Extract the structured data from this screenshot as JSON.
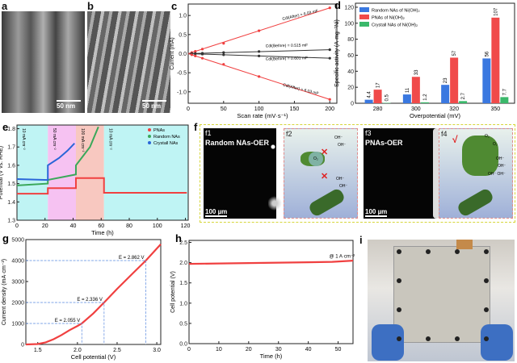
{
  "panels": {
    "a": {
      "label": "a",
      "scale_bar": "50 nm"
    },
    "b": {
      "label": "b",
      "scale_bar": "50 nm"
    },
    "f": {
      "label": "f",
      "f1": {
        "label": "f1",
        "title": "Random NAs-OER",
        "scale_bar": "100 µm"
      },
      "f2": {
        "label": "f2",
        "species": [
          "OH⁻",
          "OH⁻",
          "O₂",
          "OH⁻",
          "OH⁻"
        ],
        "mark": "✕"
      },
      "f3": {
        "label": "f3",
        "title": "PNAs-OER",
        "scale_bar": "100 µm"
      },
      "f4": {
        "label": "f4",
        "species": [
          "O₂",
          "O₂",
          "OH⁻",
          "OH⁻",
          "OH⁻ OH⁻"
        ],
        "mark": "√"
      }
    },
    "i": {
      "label": "i"
    }
  },
  "colors": {
    "red": "#f04040",
    "green": "#3aa85a",
    "blue": "#2a66d8",
    "black": "#333333"
  },
  "chart_data": [
    {
      "id": "c",
      "panel_label": "c",
      "type": "scatter",
      "xlabel": "Scan rate (mV·s⁻¹)",
      "ylabel": "Current (mA)",
      "xlim": [
        0,
        210
      ],
      "ylim": [
        -1.3,
        1.3
      ],
      "xticks": [
        0,
        50,
        100,
        150,
        200
      ],
      "yticks": [
        -1.0,
        -0.5,
        0.0,
        0.5,
        1.0
      ],
      "x": [
        5,
        10,
        20,
        50,
        100,
        200
      ],
      "series": [
        {
          "values": [
            0.03,
            0.06,
            0.12,
            0.27,
            0.6,
            1.2
          ],
          "color": "#f04040",
          "annotation": "Cdl(After) = 6.03 mF"
        },
        {
          "values": [
            0.003,
            0.005,
            0.01,
            0.03,
            0.055,
            0.103
          ],
          "color": "#333333",
          "annotation": "Cdl(Before) = 0.515 mF"
        },
        {
          "values": [
            -0.003,
            -0.006,
            -0.012,
            -0.03,
            -0.06,
            -0.12
          ],
          "color": "#333333",
          "annotation": "Cdl(Before) = 0.601 mF"
        },
        {
          "values": [
            -0.03,
            -0.06,
            -0.12,
            -0.28,
            -0.6,
            -1.2
          ],
          "color": "#f04040",
          "annotation": "Cdl(After) = 6.03 mF"
        }
      ]
    },
    {
      "id": "d",
      "panel_label": "d",
      "type": "bar",
      "xlabel": "Overpotential (mV)",
      "ylabel": "Specific activity (A·mg⁻¹Ni)",
      "categories": [
        "280",
        "300",
        "320",
        "350"
      ],
      "ylim": [
        0,
        125
      ],
      "yticks": [
        0,
        20,
        40,
        60,
        80,
        100,
        120
      ],
      "legend": "top-left",
      "series": [
        {
          "name": "Random NAs of Ni(OH)₂",
          "values": [
            4.4,
            11,
            23,
            56
          ],
          "labels": [
            "4.4",
            "11",
            "23",
            "56"
          ],
          "color": "#3a78e0"
        },
        {
          "name": "PNAs of Ni(OH)₂",
          "values": [
            17,
            33,
            57,
            107
          ],
          "labels": [
            "17",
            "33",
            "57",
            "107"
          ],
          "color": "#f04a4a"
        },
        {
          "name": "Crystall NAs of Ni(OH)₂",
          "values": [
            0.5,
            1.2,
            2.7,
            7.7
          ],
          "labels": [
            "0.5",
            "1.2",
            "2.7",
            "7.7"
          ],
          "color": "#3ab86a"
        }
      ]
    },
    {
      "id": "e",
      "panel_label": "e",
      "type": "line",
      "xlabel": "Time (h)",
      "ylabel": "Potential (V vs. RHE)",
      "xlim": [
        0,
        122
      ],
      "ylim": [
        1.3,
        1.82
      ],
      "xticks": [
        0,
        20,
        40,
        60,
        80,
        100,
        120
      ],
      "yticks": [
        1.3,
        1.4,
        1.5,
        1.6,
        1.7,
        1.8
      ],
      "legend": "top-right",
      "regions": [
        {
          "x": [
            0,
            22
          ],
          "color": "#bff4f4",
          "label": "10 mA cm⁻²"
        },
        {
          "x": [
            22,
            42
          ],
          "color": "#f6c2f2",
          "label": "50 mA cm⁻²"
        },
        {
          "x": [
            42,
            62
          ],
          "color": "#f8c8c0",
          "label": "100 mA cm⁻²"
        },
        {
          "x": [
            62,
            122
          ],
          "color": "#bff4f4",
          "label": "10 mA cm⁻²"
        }
      ],
      "series": [
        {
          "name": "PNAs",
          "color": "#f04040",
          "points": [
            [
              0,
              1.445
            ],
            [
              22,
              1.445
            ],
            [
              22,
              1.475
            ],
            [
              42,
              1.475
            ],
            [
              42,
              1.53
            ],
            [
              62,
              1.53
            ],
            [
              62,
              1.45
            ],
            [
              121,
              1.45
            ]
          ]
        },
        {
          "name": "Random NAs",
          "color": "#3aa85a",
          "points": [
            [
              0,
              1.49
            ],
            [
              22,
              1.5
            ],
            [
              22,
              1.52
            ],
            [
              42,
              1.55
            ],
            [
              42,
              1.6
            ],
            [
              46,
              1.64
            ],
            [
              52,
              1.7
            ],
            [
              58,
              1.81
            ]
          ]
        },
        {
          "name": "Crystall NAs",
          "color": "#2a66d8",
          "points": [
            [
              0,
              1.525
            ],
            [
              22,
              1.52
            ],
            [
              22,
              1.6
            ],
            [
              30,
              1.64
            ],
            [
              36,
              1.68
            ],
            [
              41,
              1.72
            ]
          ]
        }
      ]
    },
    {
      "id": "g",
      "panel_label": "g",
      "type": "line",
      "xlabel": "Cell potential (V)",
      "ylabel": "Current density (mA·cm⁻²)",
      "xlim": [
        1.35,
        3.05
      ],
      "ylim": [
        0,
        5000
      ],
      "xticks": [
        1.5,
        2.0,
        2.5,
        3.0
      ],
      "yticks": [
        0,
        1000,
        2000,
        3000,
        4000,
        5000
      ],
      "series": [
        {
          "color": "#f04040",
          "points": [
            [
              1.35,
              0
            ],
            [
              1.5,
              20
            ],
            [
              1.6,
              100
            ],
            [
              1.7,
              250
            ],
            [
              1.8,
              450
            ],
            [
              1.9,
              680
            ],
            [
              2.0,
              880
            ],
            [
              2.055,
              1000
            ],
            [
              2.2,
              1480
            ],
            [
              2.336,
              2000
            ],
            [
              2.5,
              2650
            ],
            [
              2.7,
              3400
            ],
            [
              2.862,
              4000
            ],
            [
              3.05,
              4780
            ]
          ]
        }
      ],
      "annotations": [
        {
          "text": "E = 2.055 V",
          "x": 2.055,
          "y": 1000
        },
        {
          "text": "E = 2.336 V",
          "x": 2.336,
          "y": 2000
        },
        {
          "text": "E = 2.862 V",
          "x": 2.862,
          "y": 4000
        }
      ]
    },
    {
      "id": "h",
      "panel_label": "h",
      "type": "line",
      "xlabel": "Time (h)",
      "ylabel": "Cell potential (V)",
      "xlim": [
        0,
        55
      ],
      "ylim": [
        0,
        2.55
      ],
      "xticks": [
        0,
        10,
        20,
        30,
        40,
        50
      ],
      "yticks": [
        0.0,
        0.5,
        1.0,
        1.5,
        2.0,
        2.5
      ],
      "series": [
        {
          "color": "#f04040",
          "points": [
            [
              0,
              1.97
            ],
            [
              10,
              1.98
            ],
            [
              20,
              1.99
            ],
            [
              30,
              2.0
            ],
            [
              40,
              2.01
            ],
            [
              48,
              2.02
            ],
            [
              55,
              2.05
            ]
          ]
        }
      ],
      "annotations": [
        {
          "text": "@ 1 A·cm⁻²",
          "x": 47,
          "y": 2.12
        }
      ]
    }
  ]
}
